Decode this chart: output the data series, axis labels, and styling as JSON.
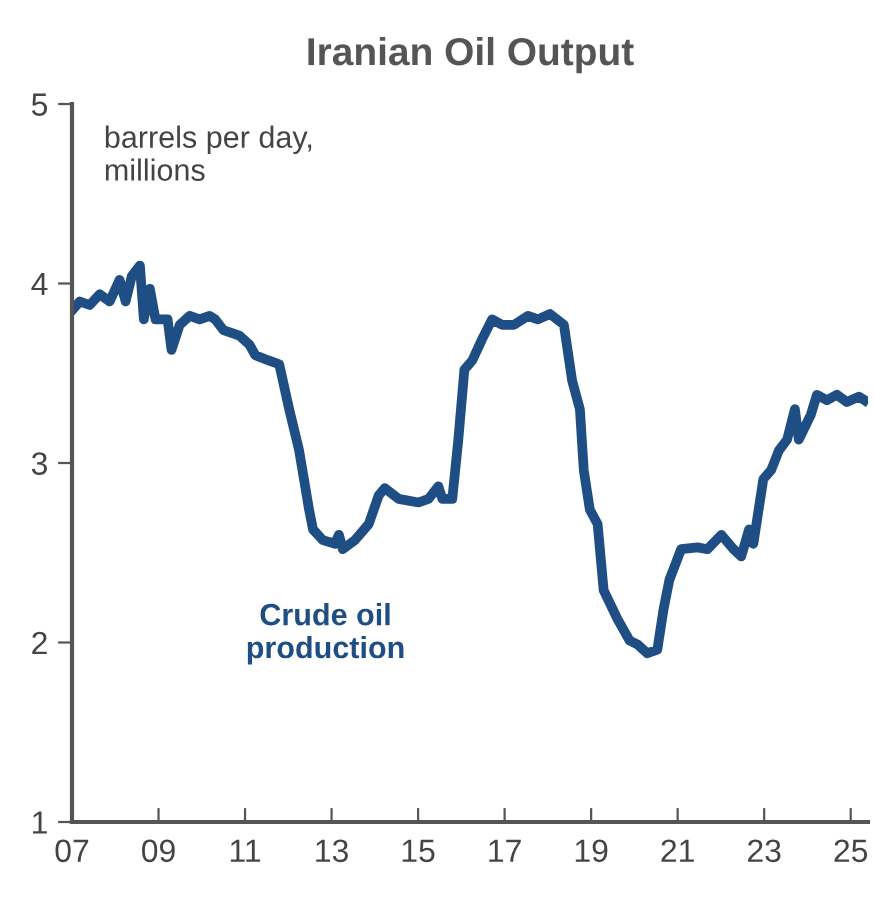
{
  "chart_data": {
    "type": "line",
    "title": "Iranian Oil Output",
    "annotations": [
      "barrels per day,\nmillions"
    ],
    "xlim": [
      2007,
      2025.4
    ],
    "ylim": [
      1,
      5
    ],
    "xticks": [
      {
        "value": 2007,
        "label": "07"
      },
      {
        "value": 2009,
        "label": "09"
      },
      {
        "value": 2011,
        "label": "11"
      },
      {
        "value": 2013,
        "label": "13"
      },
      {
        "value": 2015,
        "label": "15"
      },
      {
        "value": 2017,
        "label": "17"
      },
      {
        "value": 2019,
        "label": "19"
      },
      {
        "value": 2021,
        "label": "21"
      },
      {
        "value": 2023,
        "label": "23"
      },
      {
        "value": 2025,
        "label": "25"
      }
    ],
    "yticks": [
      1,
      2,
      3,
      4,
      5
    ],
    "grid": false,
    "legend": false,
    "marker": "none",
    "line_style": "solid",
    "series": [
      {
        "name": "Crude oil\nproduction",
        "color": "#1f4e85",
        "x": [
          2007.0,
          2007.18,
          2007.41,
          2007.64,
          2007.87,
          2008.1,
          2008.24,
          2008.38,
          2008.57,
          2008.66,
          2008.8,
          2008.93,
          2009.21,
          2009.3,
          2009.49,
          2009.72,
          2009.95,
          2010.18,
          2010.31,
          2010.5,
          2010.87,
          2011.1,
          2011.24,
          2011.56,
          2011.79,
          2012.02,
          2012.25,
          2012.48,
          2012.57,
          2012.8,
          2013.08,
          2013.17,
          2013.26,
          2013.54,
          2013.86,
          2014.09,
          2014.23,
          2014.55,
          2015.01,
          2015.24,
          2015.47,
          2015.56,
          2015.79,
          2015.93,
          2016.07,
          2016.25,
          2016.48,
          2016.71,
          2016.94,
          2017.22,
          2017.54,
          2017.77,
          2018.05,
          2018.37,
          2018.56,
          2018.74,
          2018.83,
          2018.97,
          2019.15,
          2019.29,
          2019.61,
          2019.89,
          2020.07,
          2020.3,
          2020.53,
          2020.67,
          2020.81,
          2021.08,
          2021.46,
          2021.69,
          2022.01,
          2022.29,
          2022.47,
          2022.65,
          2022.75,
          2022.98,
          2023.16,
          2023.34,
          2023.53,
          2023.71,
          2023.8,
          2024.08,
          2024.22,
          2024.45,
          2024.68,
          2024.91,
          2025.19,
          2025.32
        ],
        "values": [
          3.85,
          3.9,
          3.88,
          3.94,
          3.9,
          4.02,
          3.9,
          4.04,
          4.1,
          3.8,
          3.97,
          3.8,
          3.8,
          3.63,
          3.77,
          3.82,
          3.8,
          3.82,
          3.8,
          3.74,
          3.71,
          3.66,
          3.6,
          3.57,
          3.55,
          3.3,
          3.07,
          2.74,
          2.63,
          2.57,
          2.55,
          2.6,
          2.52,
          2.57,
          2.66,
          2.82,
          2.86,
          2.8,
          2.78,
          2.8,
          2.87,
          2.8,
          2.8,
          3.13,
          3.52,
          3.57,
          3.69,
          3.8,
          3.77,
          3.77,
          3.82,
          3.8,
          3.83,
          3.77,
          3.46,
          3.3,
          2.96,
          2.74,
          2.66,
          2.29,
          2.13,
          2.01,
          1.99,
          1.94,
          1.96,
          2.18,
          2.35,
          2.52,
          2.53,
          2.52,
          2.6,
          2.52,
          2.48,
          2.63,
          2.55,
          2.91,
          2.96,
          3.07,
          3.13,
          3.3,
          3.13,
          3.27,
          3.38,
          3.35,
          3.38,
          3.34,
          3.37,
          3.35
        ]
      }
    ]
  }
}
